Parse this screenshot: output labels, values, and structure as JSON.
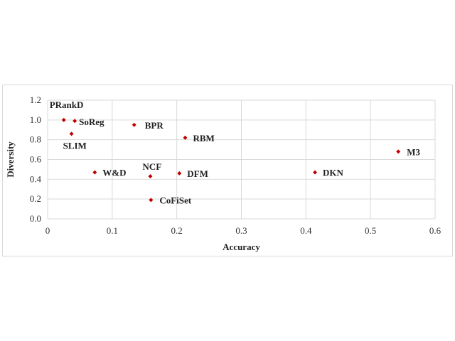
{
  "chart_data": {
    "type": "scatter",
    "title": "",
    "xlabel": "Accuracy",
    "ylabel": "Diversity",
    "xlim": [
      0,
      0.6
    ],
    "ylim": [
      0,
      1.2
    ],
    "xticks": [
      0,
      0.1,
      0.2,
      0.3,
      0.4,
      0.5,
      0.6
    ],
    "xtick_labels": [
      "0",
      "0.1",
      "0.2",
      "0.3",
      "0.4",
      "0.5",
      "0.6"
    ],
    "yticks": [
      0,
      0.2,
      0.4,
      0.6,
      0.8,
      1.0,
      1.2
    ],
    "ytick_labels": [
      "0.0",
      "0.2",
      "0.4",
      "0.6",
      "0.8",
      "1.0",
      "1.2"
    ],
    "grid": true,
    "marker_color": "#c00000",
    "points": [
      {
        "label": "PRankD",
        "x": 0.025,
        "y": 1.0
      },
      {
        "label": "SoReg",
        "x": 0.042,
        "y": 0.99
      },
      {
        "label": "SLIM",
        "x": 0.037,
        "y": 0.86
      },
      {
        "label": "BPR",
        "x": 0.134,
        "y": 0.95
      },
      {
        "label": "RBM",
        "x": 0.213,
        "y": 0.82
      },
      {
        "label": "W&D",
        "x": 0.073,
        "y": 0.47
      },
      {
        "label": "NCF",
        "x": 0.159,
        "y": 0.43
      },
      {
        "label": "DFM",
        "x": 0.204,
        "y": 0.46
      },
      {
        "label": "CoFiSet",
        "x": 0.16,
        "y": 0.19
      },
      {
        "label": "DKN",
        "x": 0.414,
        "y": 0.47
      },
      {
        "label": "M3",
        "x": 0.543,
        "y": 0.68
      }
    ]
  }
}
